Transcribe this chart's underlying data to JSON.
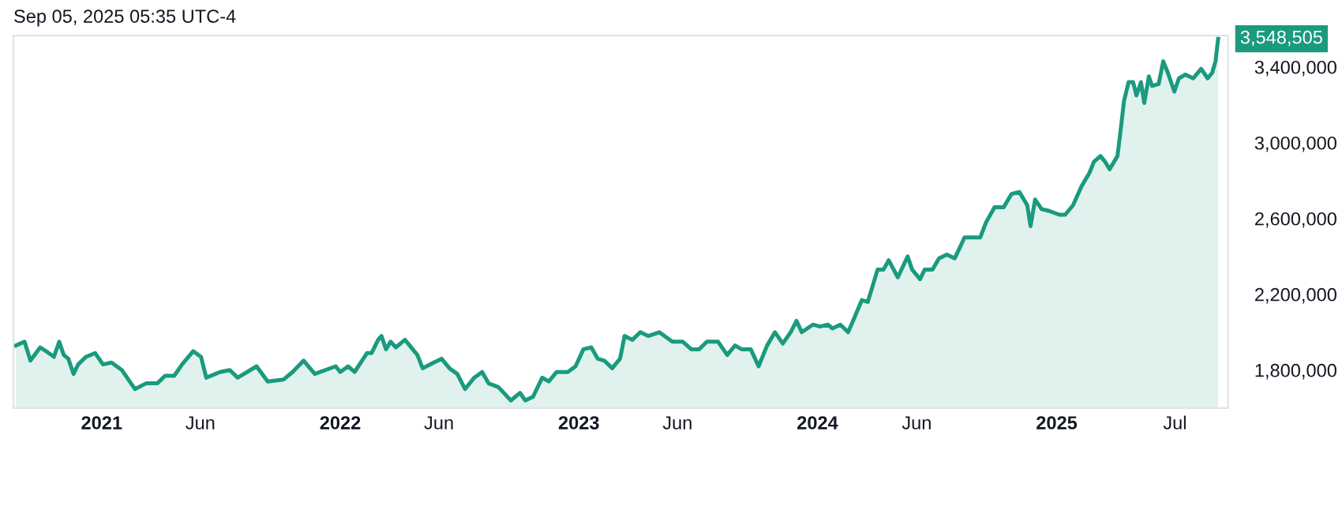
{
  "chart_data": {
    "type": "area",
    "title": "Sep 05, 2025 05:35 UTC-4",
    "x": [
      "2020-08-23",
      "2020-09-05",
      "2020-09-14",
      "2020-09-29",
      "2020-10-08",
      "2020-10-20",
      "2020-10-28",
      "2020-11-04",
      "2020-11-11",
      "2020-11-19",
      "2020-11-26",
      "2020-12-08",
      "2020-12-22",
      "2021-01-03",
      "2021-01-16",
      "2021-02-01",
      "2021-02-21",
      "2021-03-10",
      "2021-03-27",
      "2021-04-08",
      "2021-04-22",
      "2021-05-04",
      "2021-05-21",
      "2021-06-02",
      "2021-06-10",
      "2021-07-01",
      "2021-07-16",
      "2021-07-28",
      "2021-08-26",
      "2021-09-12",
      "2021-10-06",
      "2021-10-20",
      "2021-11-06",
      "2021-11-23",
      "2021-12-25",
      "2022-01-01",
      "2022-01-13",
      "2022-01-23",
      "2022-02-11",
      "2022-02-18",
      "2022-02-28",
      "2022-03-05",
      "2022-03-12",
      "2022-03-19",
      "2022-03-27",
      "2022-04-10",
      "2022-04-29",
      "2022-05-07",
      "2022-05-24",
      "2022-06-05",
      "2022-06-17",
      "2022-06-29",
      "2022-07-11",
      "2022-07-25",
      "2022-08-06",
      "2022-08-16",
      "2022-08-31",
      "2022-09-19",
      "2022-10-03",
      "2022-10-11",
      "2022-10-23",
      "2022-11-06",
      "2022-11-16",
      "2022-11-28",
      "2022-12-15",
      "2022-12-27",
      "2023-01-08",
      "2023-01-20",
      "2023-01-30",
      "2023-02-09",
      "2023-02-21",
      "2023-03-05",
      "2023-03-12",
      "2023-03-24",
      "2023-04-05",
      "2023-04-17",
      "2023-05-04",
      "2023-05-24",
      "2023-06-09",
      "2023-06-22",
      "2023-07-04",
      "2023-07-16",
      "2023-08-02",
      "2023-08-16",
      "2023-08-28",
      "2023-09-07",
      "2023-09-21",
      "2023-10-03",
      "2023-10-16",
      "2023-10-28",
      "2023-11-09",
      "2023-11-21",
      "2023-11-30",
      "2023-12-08",
      "2023-12-25",
      "2024-01-05",
      "2024-01-17",
      "2024-01-24",
      "2024-02-05",
      "2024-02-17",
      "2024-02-27",
      "2024-03-09",
      "2024-03-18",
      "2024-04-02",
      "2024-04-11",
      "2024-04-19",
      "2024-05-03",
      "2024-05-18",
      "2024-05-25",
      "2024-06-06",
      "2024-06-13",
      "2024-06-25",
      "2024-07-05",
      "2024-07-17",
      "2024-07-29",
      "2024-08-05",
      "2024-08-13",
      "2024-08-25",
      "2024-09-06",
      "2024-09-15",
      "2024-09-28",
      "2024-10-12",
      "2024-10-24",
      "2024-11-05",
      "2024-11-17",
      "2024-11-22",
      "2024-11-29",
      "2024-12-09",
      "2024-12-21",
      "2025-01-05",
      "2025-01-14",
      "2025-01-26",
      "2025-02-08",
      "2025-02-20",
      "2025-02-27",
      "2025-03-09",
      "2025-03-16",
      "2025-03-23",
      "2025-04-04",
      "2025-04-09",
      "2025-04-14",
      "2025-04-21",
      "2025-04-28",
      "2025-05-03",
      "2025-05-10",
      "2025-05-15",
      "2025-05-22",
      "2025-05-27",
      "2025-06-06",
      "2025-06-13",
      "2025-06-20",
      "2025-06-30",
      "2025-07-07",
      "2025-07-17",
      "2025-07-29",
      "2025-08-10",
      "2025-08-20",
      "2025-08-27",
      "2025-09-01",
      "2025-09-05"
    ],
    "series": [
      {
        "color": "#1a9a7e",
        "values": [
          1930000,
          1950000,
          1850000,
          1920000,
          1900000,
          1870000,
          1950000,
          1880000,
          1860000,
          1780000,
          1830000,
          1870000,
          1890000,
          1830000,
          1840000,
          1800000,
          1700000,
          1730000,
          1730000,
          1770000,
          1770000,
          1830000,
          1900000,
          1870000,
          1760000,
          1790000,
          1800000,
          1760000,
          1820000,
          1740000,
          1750000,
          1790000,
          1850000,
          1780000,
          1820000,
          1790000,
          1820000,
          1790000,
          1890000,
          1890000,
          1960000,
          1980000,
          1910000,
          1950000,
          1920000,
          1960000,
          1880000,
          1810000,
          1840000,
          1860000,
          1810000,
          1780000,
          1700000,
          1760000,
          1790000,
          1730000,
          1710000,
          1640000,
          1680000,
          1640000,
          1660000,
          1760000,
          1740000,
          1790000,
          1790000,
          1820000,
          1910000,
          1920000,
          1860000,
          1850000,
          1810000,
          1860000,
          1980000,
          1960000,
          2000000,
          1980000,
          2000000,
          1950000,
          1950000,
          1910000,
          1910000,
          1950000,
          1950000,
          1880000,
          1930000,
          1910000,
          1910000,
          1820000,
          1930000,
          2000000,
          1940000,
          2000000,
          2060000,
          2000000,
          2040000,
          2030000,
          2040000,
          2020000,
          2040000,
          2000000,
          2080000,
          2170000,
          2160000,
          2330000,
          2330000,
          2380000,
          2290000,
          2400000,
          2330000,
          2280000,
          2330000,
          2330000,
          2390000,
          2410000,
          2390000,
          2440000,
          2500000,
          2500000,
          2500000,
          2580000,
          2660000,
          2660000,
          2730000,
          2740000,
          2670000,
          2560000,
          2700000,
          2650000,
          2640000,
          2620000,
          2620000,
          2670000,
          2770000,
          2840000,
          2900000,
          2930000,
          2900000,
          2860000,
          2930000,
          3070000,
          3220000,
          3320000,
          3320000,
          3250000,
          3320000,
          3210000,
          3350000,
          3300000,
          3310000,
          3430000,
          3370000,
          3270000,
          3340000,
          3360000,
          3340000,
          3390000,
          3340000,
          3370000,
          3430000,
          3548505
        ],
        "value_labels": [
          null,
          null,
          null,
          null,
          null,
          null,
          null,
          null,
          null,
          null,
          null,
          null,
          null,
          null,
          null,
          null,
          null,
          null,
          null,
          null,
          null,
          null,
          null,
          null,
          null,
          null,
          null,
          null,
          null,
          null,
          null,
          null,
          null,
          null,
          null,
          null,
          null,
          null,
          null,
          null,
          null,
          null,
          null,
          null,
          null,
          null,
          null,
          null,
          null,
          null,
          null,
          null,
          null,
          null,
          null,
          null,
          null,
          null,
          null,
          null,
          null,
          null,
          null,
          null,
          null,
          null,
          null,
          null,
          null,
          null,
          null,
          null,
          null,
          null,
          null,
          null,
          null,
          null,
          null,
          null,
          null,
          null,
          null,
          null,
          null,
          null,
          null,
          null,
          null,
          null,
          null,
          null,
          null,
          null,
          null,
          null,
          null,
          null,
          null,
          null,
          null,
          null,
          null,
          null,
          null,
          null,
          null,
          null,
          null,
          null,
          null,
          null,
          null,
          null,
          null,
          null,
          null,
          null,
          null,
          null,
          null,
          null,
          null,
          null,
          null,
          null,
          null,
          null,
          null,
          null,
          null,
          null,
          null,
          null,
          null,
          null,
          null,
          null,
          null,
          null,
          null,
          null,
          null,
          null,
          null,
          null,
          null,
          null,
          null,
          null,
          null,
          null,
          null,
          null,
          null,
          null,
          null,
          null,
          null,
          "3,548,505"
        ]
      }
    ],
    "xlim": [
      "2020-08-19",
      "2025-09-20"
    ],
    "xticks": [
      {
        "value": "2021-01-01",
        "label": "2021"
      },
      {
        "value": "2021-06-01",
        "label": "Jun"
      },
      {
        "value": "2022-01-01",
        "label": "2022"
      },
      {
        "value": "2022-06-01",
        "label": "Jun"
      },
      {
        "value": "2023-01-01",
        "label": "2023"
      },
      {
        "value": "2023-06-01",
        "label": "Jun"
      },
      {
        "value": "2024-01-01",
        "label": "2024"
      },
      {
        "value": "2024-06-01",
        "label": "Jun"
      },
      {
        "value": "2025-01-01",
        "label": "2025"
      },
      {
        "value": "2025-07-01",
        "label": "Jul"
      }
    ],
    "ylim": [
      1600000,
      3565000
    ],
    "yticks": [
      {
        "value": 1800000,
        "label": "1,800,000"
      },
      {
        "value": 2200000,
        "label": "2,200,000"
      },
      {
        "value": 2600000,
        "label": "2,600,000"
      },
      {
        "value": 3000000,
        "label": "3,000,000"
      },
      {
        "value": 3400000,
        "label": "3,400,000"
      }
    ],
    "grid": false,
    "legend": false,
    "marker": "none",
    "line_style": "solid"
  }
}
